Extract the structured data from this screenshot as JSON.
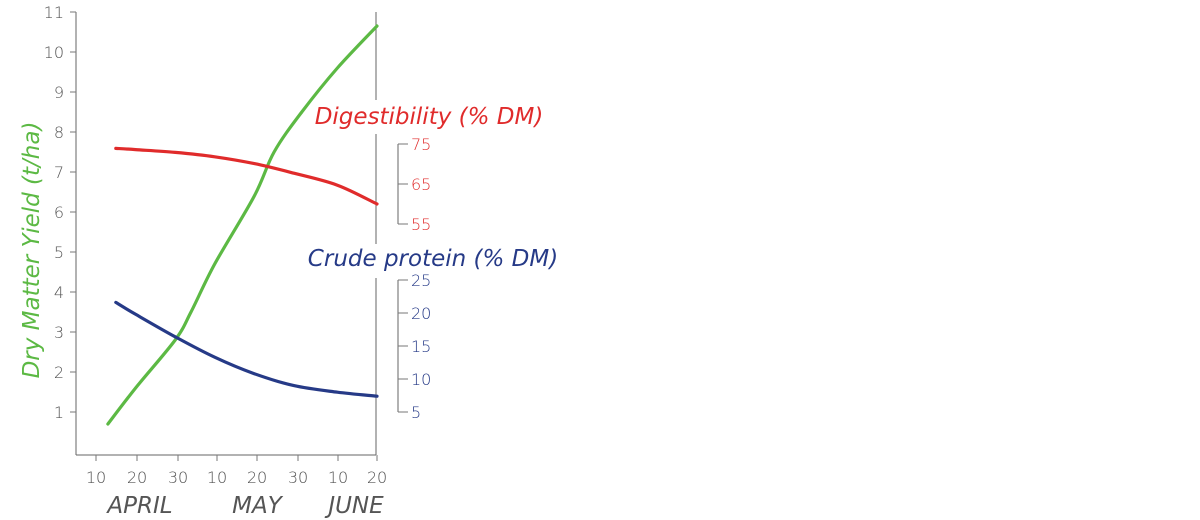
{
  "chart_data": {
    "type": "line",
    "colors": {
      "yield": "#5cb944",
      "digestibility": "#e02b2b",
      "protein": "#263a87",
      "axis": "#555555"
    },
    "x_axis": {
      "tick_labels": [
        "10",
        "20",
        "30",
        "10",
        "20",
        "30",
        "10",
        "20"
      ],
      "months": [
        "APRIL",
        "MAY",
        "JUNE"
      ]
    },
    "left_axis": {
      "label": "Dry Matter Yield (t/ha)",
      "ticks": [
        "1",
        "2",
        "3",
        "4",
        "5",
        "6",
        "7",
        "8",
        "9",
        "10",
        "11"
      ],
      "range": [
        0,
        11
      ]
    },
    "digestibility_axis": {
      "label": "Digestibility (% DM)",
      "ticks": [
        "75",
        "65",
        "55"
      ],
      "range": [
        55,
        75
      ]
    },
    "protein_axis": {
      "label": "Crude protein (% DM)",
      "ticks": [
        "25",
        "20",
        "15",
        "10",
        "5"
      ],
      "range": [
        5,
        25
      ]
    },
    "series": [
      {
        "name": "Dry Matter Yield (t/ha)",
        "axis": "left",
        "x": [
          "Apr 13",
          "Apr 20",
          "Apr 30",
          "May 4",
          "May 10",
          "May 20",
          "May 25",
          "Jun 1",
          "Jun 10",
          "Jun 20"
        ],
        "y": [
          0.7,
          1.6,
          2.8,
          3.5,
          4.7,
          6.4,
          7.5,
          8.5,
          9.6,
          10.65
        ]
      },
      {
        "name": "Digestibility (% DM)",
        "axis": "digestibility",
        "x": [
          "Apr 15",
          "Apr 20",
          "Apr 30",
          "May 10",
          "May 20",
          "May 30",
          "Jun 10",
          "Jun 20"
        ],
        "y": [
          73.9,
          73.6,
          72.9,
          71.8,
          70.1,
          67.7,
          64.7,
          60.0
        ]
      },
      {
        "name": "Crude protein (% DM)",
        "axis": "protein",
        "x": [
          "Apr 15",
          "Apr 20",
          "Apr 30",
          "May 10",
          "May 20",
          "May 30",
          "Jun 10",
          "Jun 20"
        ],
        "y": [
          21.6,
          19.8,
          16.4,
          13.3,
          10.8,
          9.0,
          8.0,
          7.4
        ]
      }
    ]
  }
}
